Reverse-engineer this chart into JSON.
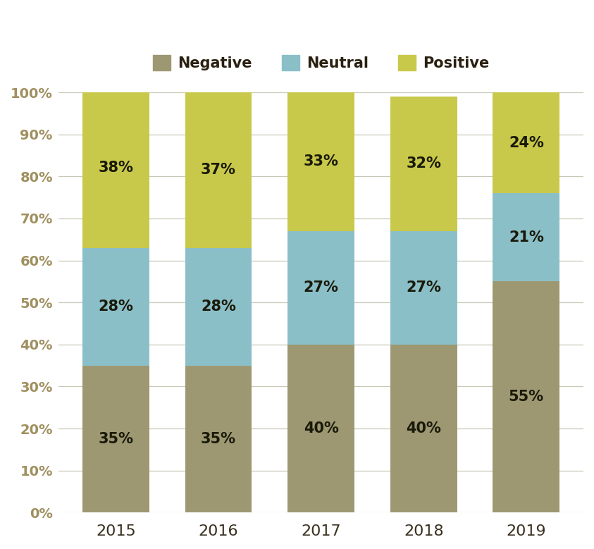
{
  "years": [
    "2015",
    "2016",
    "2017",
    "2018",
    "2019"
  ],
  "negative": [
    35,
    35,
    40,
    40,
    55
  ],
  "neutral": [
    28,
    28,
    27,
    27,
    21
  ],
  "positive": [
    38,
    37,
    33,
    32,
    24
  ],
  "color_negative": "#9d9872",
  "color_neutral": "#8bbfc8",
  "color_positive": "#c8c84a",
  "bar_width": 0.65,
  "legend_labels": [
    "Negative",
    "Neutral",
    "Positive"
  ],
  "ylabel_ticks": [
    "0%",
    "10%",
    "20%",
    "30%",
    "40%",
    "50%",
    "60%",
    "70%",
    "80%",
    "90%",
    "100%"
  ],
  "ytick_vals": [
    0,
    10,
    20,
    30,
    40,
    50,
    60,
    70,
    80,
    90,
    100
  ],
  "label_fontsize": 15,
  "legend_fontsize": 15,
  "tick_fontsize": 14,
  "ytick_color": "#a09060",
  "xtick_color": "#3a3020",
  "background_color": "#ffffff",
  "label_color": "#1a1a0a",
  "grid_color": "#c8c8b8"
}
